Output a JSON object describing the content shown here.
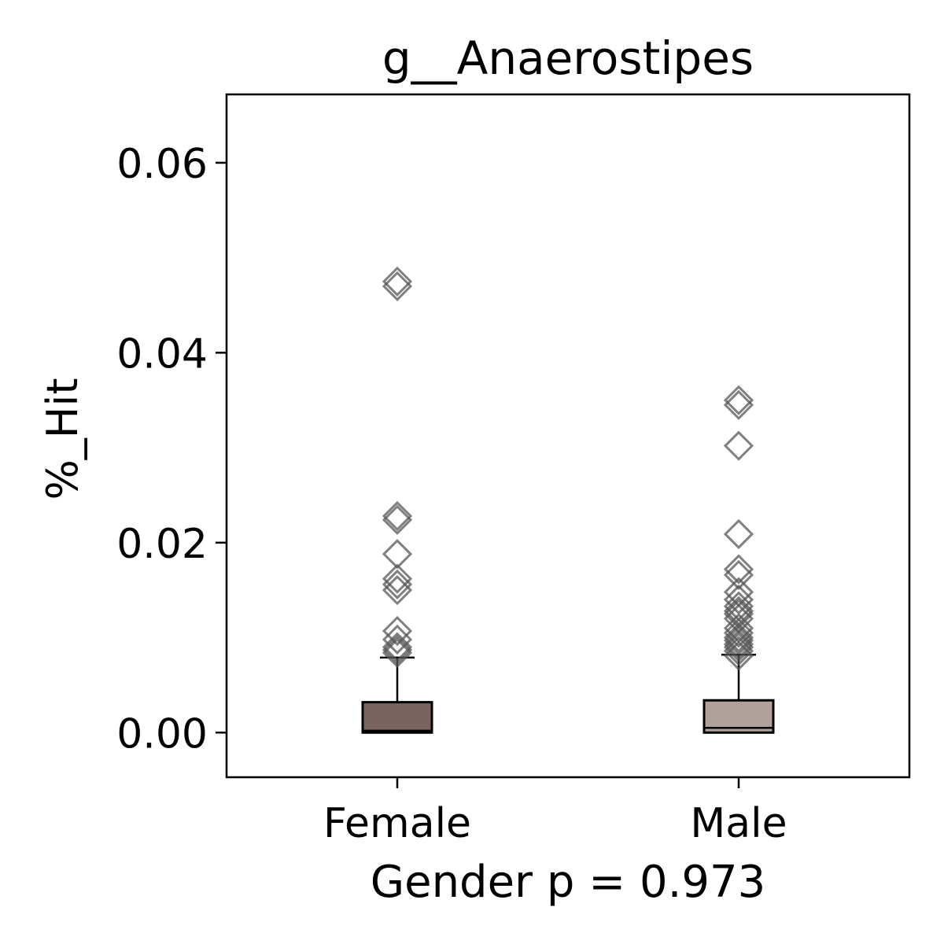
{
  "chart_data": {
    "type": "box",
    "title": "g__Anaerostipes",
    "xlabel": "Gender p = 0.973",
    "ylabel": "%_Hit",
    "categories": [
      "Female",
      "Male"
    ],
    "ylim": [
      -0.0047,
      0.0672
    ],
    "yticks": [
      0.0,
      0.02,
      0.04,
      0.06
    ],
    "ytick_labels": [
      "0.00",
      "0.02",
      "0.04",
      "0.06"
    ],
    "grid": false,
    "legend": "none",
    "series": [
      {
        "category": "Female",
        "color": "#7a6360",
        "box": {
          "min": 0.0,
          "q1": 0.0,
          "median": 0.0002,
          "q3": 0.0032,
          "max": 0.0079
        },
        "outliers": [
          0.0475,
          0.047,
          0.0228,
          0.0224,
          0.0188,
          0.0162,
          0.0156,
          0.015,
          0.0107,
          0.0098,
          0.009,
          0.0087,
          0.0084
        ]
      },
      {
        "category": "Male",
        "color": "#b0a29b",
        "box": {
          "min": 0.0,
          "q1": 0.0,
          "median": 0.0005,
          "q3": 0.0034,
          "max": 0.0082
        },
        "outliers": [
          0.035,
          0.0345,
          0.0302,
          0.0209,
          0.0172,
          0.0166,
          0.0148,
          0.014,
          0.0133,
          0.0128,
          0.0125,
          0.012,
          0.011,
          0.0105,
          0.01,
          0.0097,
          0.0093,
          0.009,
          0.0086,
          0.0081
        ]
      }
    ]
  }
}
